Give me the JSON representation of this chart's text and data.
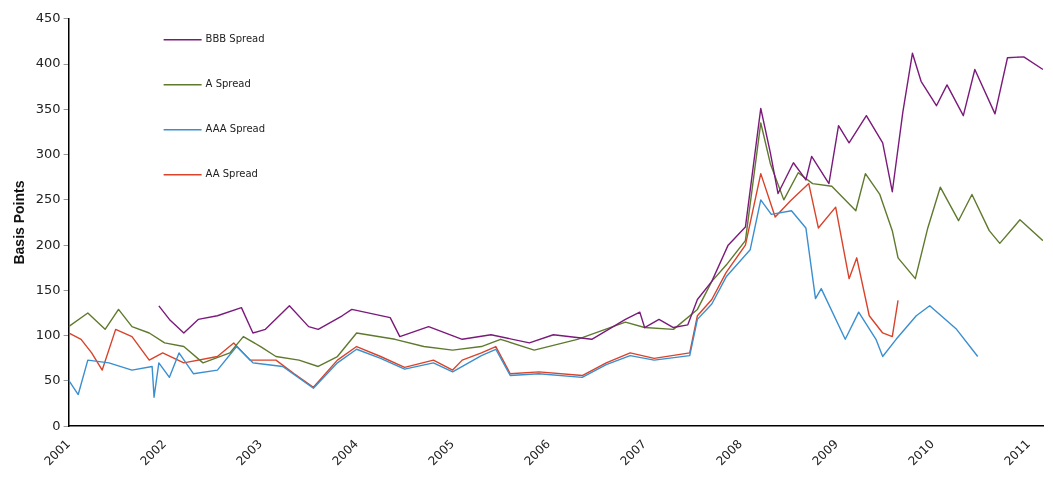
{
  "chart_data": {
    "type": "line",
    "ylabel": "Basis Points",
    "xlim": [
      2001,
      2011.15
    ],
    "xticks": [
      2001,
      2002,
      2003,
      2004,
      2005,
      2006,
      2007,
      2008,
      2009,
      2010,
      2011
    ],
    "ylim": [
      0,
      450
    ],
    "yticks": [
      0,
      50,
      100,
      150,
      200,
      250,
      300,
      350,
      400,
      450
    ],
    "grid": false,
    "legend": "top left",
    "marker": "none",
    "line_style": "solid",
    "series": [
      {
        "name": "BBB Spread",
        "color": "#7b1a7b",
        "x": [
          2001.94,
          2002.05,
          2002.2,
          2002.35,
          2002.55,
          2002.8,
          2002.92,
          2003.05,
          2003.3,
          2003.5,
          2003.6,
          2003.85,
          2003.95,
          2004.35,
          2004.45,
          2004.75,
          2005.1,
          2005.4,
          2005.8,
          2006.05,
          2006.45,
          2006.8,
          2006.95,
          2007.0,
          2007.15,
          2007.3,
          2007.45,
          2007.55,
          2007.7,
          2007.87,
          2008.05,
          2008.21,
          2008.31,
          2008.39,
          2008.55,
          2008.68,
          2008.74,
          2008.92,
          2009.02,
          2009.13,
          2009.31,
          2009.48,
          2009.58,
          2009.69,
          2009.79,
          2009.88,
          2010.04,
          2010.15,
          2010.32,
          2010.44,
          2010.65,
          2010.78,
          2010.95,
          2011.15
        ],
        "values": [
          133,
          118,
          103,
          118,
          122,
          131,
          103,
          107,
          133,
          110,
          107,
          122,
          129,
          120,
          99,
          110,
          96,
          101,
          92,
          101,
          96,
          118,
          126,
          109,
          118,
          109,
          112,
          140,
          160,
          200,
          220,
          351,
          302,
          257,
          291,
          272,
          298,
          268,
          332,
          313,
          343,
          313,
          259,
          347,
          412,
          381,
          354,
          377,
          343,
          394,
          345,
          407,
          408,
          394
        ]
      },
      {
        "name": "A Spread",
        "color": "#5f7a2e",
        "x": [
          2001.0,
          2001.2,
          2001.38,
          2001.52,
          2001.66,
          2001.84,
          2002.0,
          2002.2,
          2002.4,
          2002.68,
          2002.82,
          2003.0,
          2003.16,
          2003.4,
          2003.6,
          2003.8,
          2004.0,
          2004.4,
          2004.7,
          2005.0,
          2005.3,
          2005.5,
          2005.85,
          2006.3,
          2006.8,
          2007.0,
          2007.3,
          2007.55,
          2007.7,
          2007.85,
          2008.05,
          2008.21,
          2008.31,
          2008.45,
          2008.6,
          2008.75,
          2008.95,
          2009.2,
          2009.3,
          2009.45,
          2009.58,
          2009.64,
          2009.82,
          2009.95,
          2010.08,
          2010.27,
          2010.41,
          2010.59,
          2010.7,
          2010.91,
          2011.15
        ],
        "values": [
          110,
          125,
          107,
          129,
          110,
          103,
          92,
          88,
          70,
          81,
          99,
          88,
          77,
          73,
          66,
          77,
          103,
          96,
          88,
          84,
          88,
          96,
          84,
          96,
          115,
          109,
          107,
          129,
          160,
          178,
          205,
          335,
          290,
          250,
          280,
          268,
          265,
          238,
          279,
          256,
          216,
          186,
          163,
          219,
          264,
          227,
          256,
          216,
          202,
          228,
          205
        ]
      },
      {
        "name": "AAA Spread",
        "color": "#3a8fd0",
        "x": [
          2001.0,
          2001.1,
          2001.2,
          2001.42,
          2001.66,
          2001.87,
          2001.89,
          2001.94,
          2002.05,
          2002.15,
          2002.3,
          2002.55,
          2002.75,
          2002.92,
          2003.23,
          2003.55,
          2003.8,
          2004.0,
          2004.25,
          2004.5,
          2004.8,
          2005.0,
          2005.3,
          2005.45,
          2005.6,
          2005.9,
          2006.35,
          2006.6,
          2006.85,
          2007.1,
          2007.47,
          2007.55,
          2007.7,
          2007.85,
          2008.1,
          2008.21,
          2008.32,
          2008.53,
          2008.68,
          2008.78,
          2008.84,
          2009.09,
          2009.23,
          2009.41,
          2009.48,
          2009.62,
          2009.83,
          2009.97,
          2010.25,
          2010.47
        ],
        "values": [
          51,
          35,
          73,
          70,
          62,
          66,
          32,
          70,
          54,
          81,
          58,
          62,
          88,
          70,
          66,
          42,
          70,
          85,
          75,
          63,
          70,
          60,
          78,
          85,
          56,
          58,
          54,
          68,
          78,
          73,
          78,
          118,
          135,
          165,
          195,
          250,
          234,
          238,
          219,
          141,
          152,
          96,
          126,
          96,
          77,
          96,
          122,
          133,
          107,
          77
        ]
      },
      {
        "name": "AA Spread",
        "color": "#d9432a",
        "x": [
          2001.0,
          2001.13,
          2001.24,
          2001.35,
          2001.49,
          2001.66,
          2001.84,
          2001.98,
          2002.2,
          2002.55,
          2002.72,
          2002.89,
          2003.16,
          2003.35,
          2003.55,
          2003.8,
          2004.0,
          2004.25,
          2004.5,
          2004.8,
          2005.0,
          2005.1,
          2005.3,
          2005.45,
          2005.6,
          2005.9,
          2006.35,
          2006.6,
          2006.85,
          2007.1,
          2007.47,
          2007.55,
          2007.7,
          2007.85,
          2008.05,
          2008.21,
          2008.36,
          2008.52,
          2008.71,
          2008.81,
          2008.99,
          2009.13,
          2009.21,
          2009.34,
          2009.48,
          2009.58,
          2009.64
        ],
        "values": [
          103,
          96,
          81,
          62,
          107,
          99,
          73,
          81,
          70,
          77,
          92,
          73,
          73,
          58,
          43,
          73,
          88,
          77,
          65,
          73,
          62,
          73,
          81,
          88,
          58,
          60,
          56,
          70,
          81,
          75,
          81,
          122,
          140,
          170,
          200,
          279,
          231,
          249,
          268,
          219,
          242,
          163,
          186,
          122,
          103,
          99,
          139
        ]
      }
    ]
  }
}
